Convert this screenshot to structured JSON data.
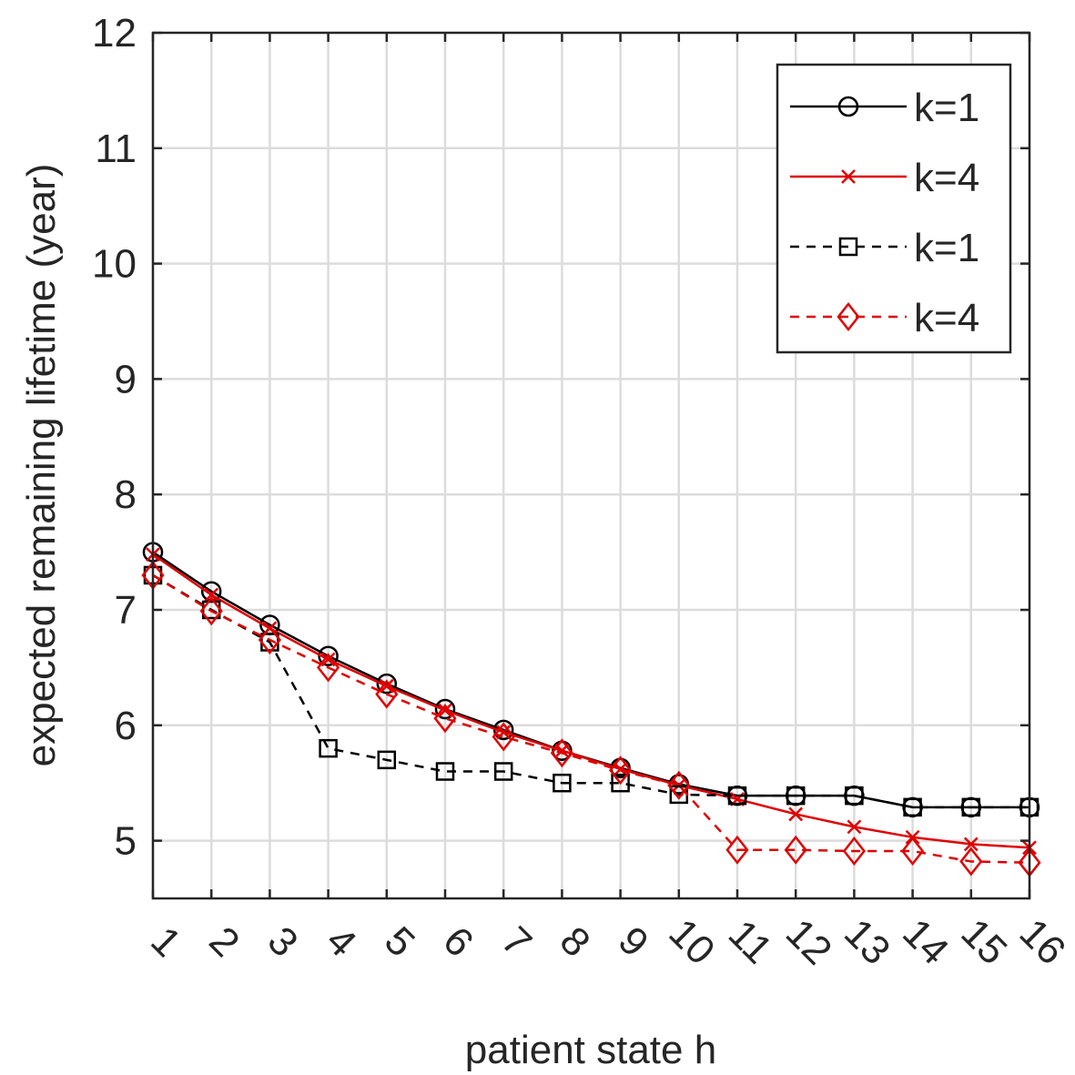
{
  "chart_data": {
    "type": "line",
    "title": "",
    "xlabel": "patient state h",
    "ylabel": "expected remaining lifetime (year)",
    "x": [
      1,
      2,
      3,
      4,
      5,
      6,
      7,
      8,
      9,
      10,
      11,
      12,
      13,
      14,
      15,
      16
    ],
    "xlim": [
      1,
      16
    ],
    "ylim": [
      4.5,
      12
    ],
    "yticks": [
      5,
      6,
      7,
      8,
      9,
      10,
      11,
      12
    ],
    "xtick_labels": [
      "1",
      "2",
      "3",
      "4",
      "5",
      "6",
      "7",
      "8",
      "9",
      "10",
      "11",
      "12",
      "13",
      "14",
      "15",
      "16"
    ],
    "ytick_labels": [
      "5",
      "6",
      "7",
      "8",
      "9",
      "10",
      "11",
      "12"
    ],
    "grid": true,
    "legend_position": "top-right",
    "series": [
      {
        "name": "k=1",
        "color": "#000000",
        "line": "solid",
        "marker": "circle",
        "values": [
          7.5,
          7.16,
          6.87,
          6.6,
          6.36,
          6.14,
          5.96,
          5.78,
          5.63,
          5.49,
          5.39,
          5.39,
          5.39,
          5.29,
          5.29,
          5.29
        ]
      },
      {
        "name": "k=4",
        "color": "#e00000",
        "line": "solid",
        "marker": "x",
        "values": [
          7.48,
          7.13,
          6.84,
          6.57,
          6.34,
          6.13,
          5.94,
          5.78,
          5.62,
          5.48,
          5.36,
          5.23,
          5.12,
          5.03,
          4.97,
          4.94
        ]
      },
      {
        "name": "k=1",
        "color": "#000000",
        "line": "dashed",
        "marker": "square",
        "values": [
          7.3,
          7.0,
          6.72,
          5.8,
          5.7,
          5.6,
          5.6,
          5.5,
          5.5,
          5.4,
          5.39,
          5.39,
          5.39,
          5.29,
          5.29,
          5.29
        ]
      },
      {
        "name": "k=4",
        "color": "#e00000",
        "line": "dashed",
        "marker": "diamond",
        "values": [
          7.3,
          6.99,
          6.74,
          6.5,
          6.27,
          6.06,
          5.9,
          5.76,
          5.61,
          5.48,
          4.92,
          4.92,
          4.91,
          4.91,
          4.82,
          4.81
        ]
      }
    ]
  }
}
